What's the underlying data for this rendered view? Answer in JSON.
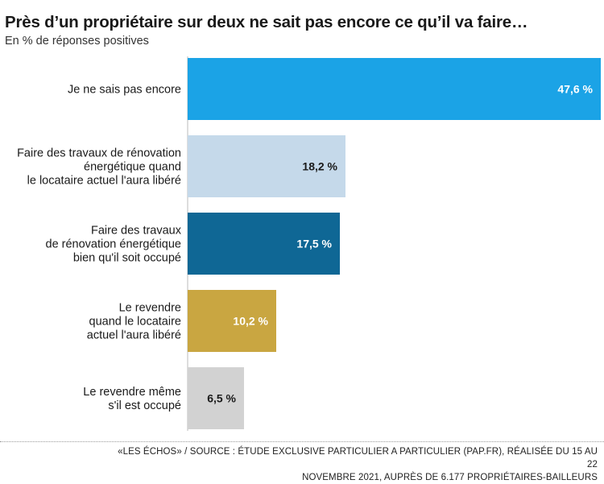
{
  "title": "Près d’un propriétaire sur deux ne sait pas encore ce qu’il va faire…",
  "subtitle": "En % de réponses positives",
  "source_line1": "«LES ÉCHOS» / SOURCE : ÉTUDE EXCLUSIVE PARTICULIER A PARTICULIER (PAP.FR), RÉALISÉE DU 15 AU 22",
  "source_line2": "NOVEMBRE 2021, AUPRÈS DE 6.177 PROPRIÉTAIRES-BAILLEURS",
  "chart_data": {
    "type": "bar",
    "orientation": "horizontal",
    "title": "Près d’un propriétaire sur deux ne sait pas encore ce qu’il va faire…",
    "subtitle": "En % de réponses positives",
    "categories": [
      [
        "Je ne sais pas encore"
      ],
      [
        "Faire des travaux de rénovation",
        "énergétique quand",
        "le locataire actuel l'aura libéré"
      ],
      [
        "Faire des travaux",
        "de rénovation énergétique",
        "bien qu'il soit occupé"
      ],
      [
        "Le revendre",
        "quand le locataire",
        "actuel l'aura libéré"
      ],
      [
        "Le revendre même",
        "s'il est occupé"
      ]
    ],
    "values": [
      47.6,
      18.2,
      17.5,
      10.2,
      6.5
    ],
    "value_labels": [
      "47,6 %",
      "18,2 %",
      "17,5 %",
      "10,2 %",
      "6,5 %"
    ],
    "colors": [
      "#1ba3e6",
      "#c5d9ea",
      "#0f6795",
      "#c9a641",
      "#d2d2d2"
    ],
    "label_colors": [
      "#ffffff",
      "#1a1a1a",
      "#ffffff",
      "#ffffff",
      "#1a1a1a"
    ],
    "xlim": [
      0,
      47.6
    ],
    "grid": false,
    "legend": "none"
  }
}
